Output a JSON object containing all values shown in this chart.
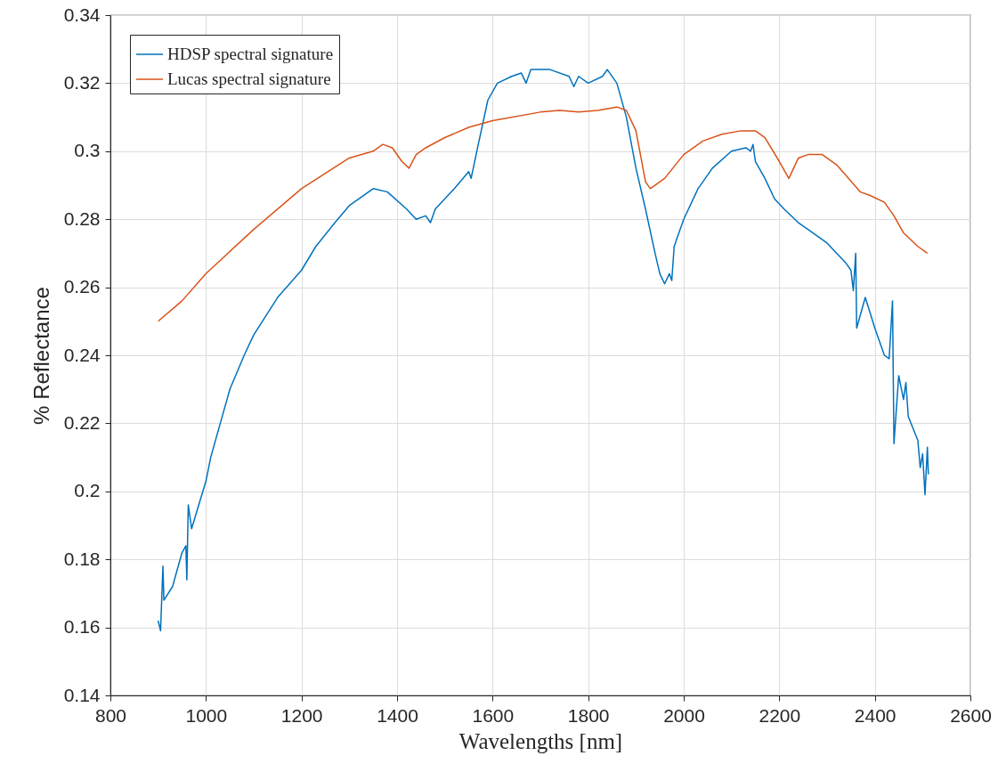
{
  "chart_data": {
    "type": "line",
    "xlabel": "Wavelengths [nm]",
    "ylabel": "% Reflectance",
    "xlim": [
      800,
      2600
    ],
    "xticks": [
      800,
      1000,
      1200,
      1400,
      1600,
      1800,
      2000,
      2200,
      2400,
      2600
    ],
    "ylim": [
      0.14,
      0.34
    ],
    "yticks": [
      0.14,
      0.16,
      0.18,
      0.2,
      0.22,
      0.24,
      0.26,
      0.28,
      0.3,
      0.32,
      0.34
    ],
    "grid": true,
    "legend": "top left",
    "marker": "none",
    "line_style": "solid",
    "series": [
      {
        "name": "HDSP spectral signature",
        "color": "#0072bd",
        "x": [
          900,
          905,
          910,
          912,
          930,
          950,
          958,
          960,
          963,
          970,
          1000,
          1010,
          1030,
          1050,
          1080,
          1100,
          1150,
          1200,
          1230,
          1270,
          1300,
          1350,
          1380,
          1420,
          1440,
          1460,
          1470,
          1480,
          1520,
          1550,
          1555,
          1570,
          1590,
          1610,
          1640,
          1660,
          1670,
          1680,
          1720,
          1760,
          1770,
          1780,
          1800,
          1830,
          1840,
          1860,
          1880,
          1900,
          1920,
          1940,
          1950,
          1960,
          1970,
          1975,
          1980,
          2000,
          2030,
          2060,
          2100,
          2130,
          2140,
          2145,
          2150,
          2170,
          2190,
          2210,
          2240,
          2260,
          2300,
          2340,
          2350,
          2355,
          2360,
          2362,
          2380,
          2400,
          2420,
          2430,
          2437,
          2440,
          2450,
          2460,
          2465,
          2470,
          2490,
          2495,
          2500,
          2505,
          2510,
          2512
        ],
        "values": [
          0.162,
          0.159,
          0.178,
          0.168,
          0.172,
          0.182,
          0.184,
          0.174,
          0.196,
          0.189,
          0.203,
          0.21,
          0.22,
          0.23,
          0.24,
          0.246,
          0.257,
          0.265,
          0.272,
          0.279,
          0.284,
          0.289,
          0.288,
          0.283,
          0.28,
          0.281,
          0.279,
          0.283,
          0.289,
          0.294,
          0.292,
          0.302,
          0.315,
          0.32,
          0.322,
          0.323,
          0.32,
          0.324,
          0.324,
          0.322,
          0.319,
          0.322,
          0.32,
          0.322,
          0.324,
          0.32,
          0.31,
          0.295,
          0.283,
          0.27,
          0.264,
          0.261,
          0.264,
          0.262,
          0.272,
          0.28,
          0.289,
          0.295,
          0.3,
          0.301,
          0.3,
          0.302,
          0.297,
          0.292,
          0.286,
          0.283,
          0.279,
          0.277,
          0.273,
          0.267,
          0.265,
          0.259,
          0.27,
          0.248,
          0.257,
          0.248,
          0.24,
          0.239,
          0.256,
          0.214,
          0.234,
          0.227,
          0.232,
          0.222,
          0.215,
          0.207,
          0.211,
          0.199,
          0.213,
          0.205
        ]
      },
      {
        "name": "Lucas spectral signature",
        "color": "#d95319",
        "x": [
          900,
          950,
          1000,
          1100,
          1200,
          1300,
          1350,
          1370,
          1390,
          1410,
          1425,
          1440,
          1460,
          1500,
          1550,
          1600,
          1700,
          1740,
          1780,
          1820,
          1860,
          1880,
          1900,
          1920,
          1930,
          1960,
          2000,
          2040,
          2080,
          2120,
          2150,
          2170,
          2200,
          2220,
          2240,
          2260,
          2290,
          2320,
          2370,
          2390,
          2420,
          2440,
          2460,
          2490,
          2510
        ],
        "values": [
          0.25,
          0.256,
          0.264,
          0.277,
          0.289,
          0.298,
          0.3,
          0.302,
          0.301,
          0.297,
          0.295,
          0.299,
          0.301,
          0.304,
          0.307,
          0.309,
          0.3115,
          0.312,
          0.3115,
          0.312,
          0.313,
          0.312,
          0.306,
          0.291,
          0.289,
          0.292,
          0.299,
          0.303,
          0.305,
          0.306,
          0.306,
          0.304,
          0.297,
          0.292,
          0.298,
          0.299,
          0.299,
          0.296,
          0.288,
          0.287,
          0.285,
          0.281,
          0.276,
          0.272,
          0.27
        ]
      }
    ]
  }
}
